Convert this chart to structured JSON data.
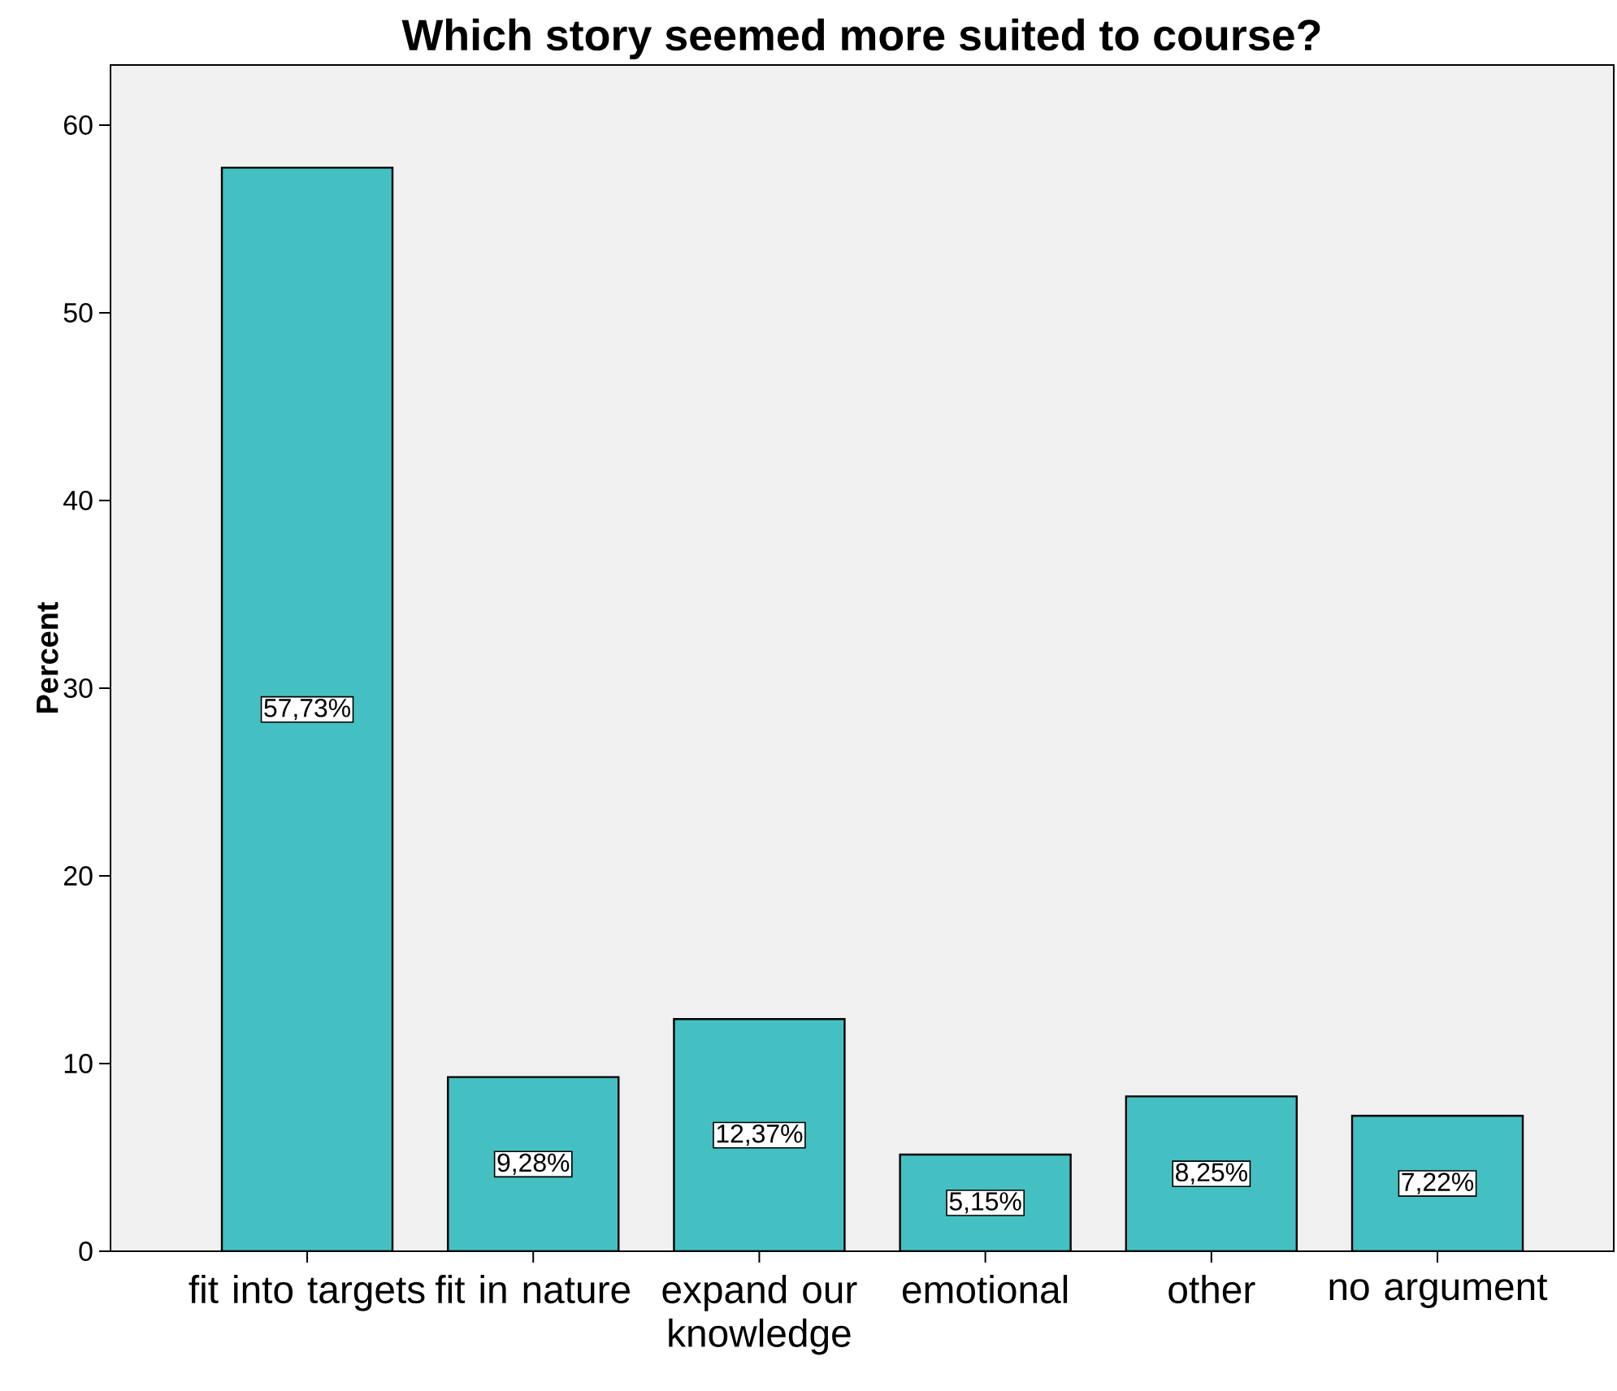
{
  "chart_data": {
    "type": "bar",
    "title": "Which story seemed more suited to course?",
    "ylabel": "Percent",
    "categories": [
      "fit into targets",
      "fit in nature",
      "expand our knowledge",
      "emotional",
      "other",
      "no argument"
    ],
    "values": [
      57.73,
      9.28,
      12.37,
      5.15,
      8.25,
      7.22
    ],
    "value_labels": [
      "57,73%",
      "9,28%",
      "12,37%",
      "5,15%",
      "8,25%",
      "7,22%"
    ],
    "color": "#45c0c2",
    "ylim": [
      0,
      63.2
    ],
    "yticks": [
      0,
      10,
      20,
      30,
      40,
      50,
      60
    ],
    "grid": false
  }
}
